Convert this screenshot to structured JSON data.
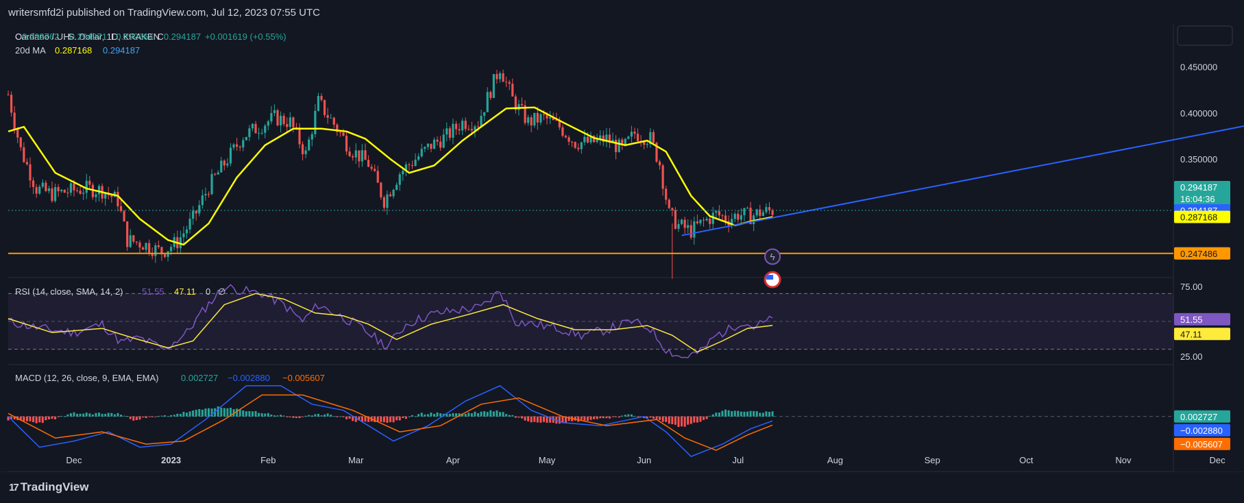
{
  "header": {
    "publish_text": "writersmfd2i published on TradingView.com, Jul 12, 2023 07:55 UTC"
  },
  "footer": {
    "brand": "TradingView",
    "logo_glyph": "17"
  },
  "colors": {
    "background": "#131722",
    "up": "#26a69a",
    "down": "#ef5350",
    "ma": "#ffff00",
    "trendline": "#2962ff",
    "support": "#ff9800",
    "rsi": "#7e57c2",
    "rsi_ma": "#ffeb3b",
    "macd": "#2962ff",
    "signal": "#ff6d00",
    "hist_up": "#26a69a",
    "hist_down": "#ff5252"
  },
  "chart_data": [
    {
      "type": "candlestick",
      "legend": {
        "symbol": "Cardano / U. S. Dollar, 1D, KRAKEN",
        "o_label": "O",
        "o_val": "0.292762",
        "h_label": "H",
        "h_val": "0.294971",
        "l_label": "L",
        "l_val": "0.292664",
        "c_label": "C",
        "c_val": "0.294187",
        "change": "+0.001619 (+0.55%)",
        "ma_label": "20d MA",
        "ma_val1": "0.287168",
        "ma_val2": "0.294187"
      },
      "y_ticks": [
        "0.450000",
        "0.400000",
        "0.350000"
      ],
      "ylim": [
        0.225,
        0.49
      ],
      "x_ticks": [
        "Dec",
        "2023",
        "Feb",
        "Mar",
        "Apr",
        "May",
        "Jun",
        "Jul",
        "Aug",
        "Sep",
        "Oct",
        "Nov",
        "Dec"
      ],
      "close_path_anchors": [
        [
          "2022-11-10",
          0.42
        ],
        [
          "2022-11-14",
          0.36
        ],
        [
          "2022-11-19",
          0.318
        ],
        [
          "2022-11-24",
          0.312
        ],
        [
          "2022-11-29",
          0.315
        ],
        [
          "2022-12-05",
          0.318
        ],
        [
          "2022-12-10",
          0.316
        ],
        [
          "2022-12-15",
          0.305
        ],
        [
          "2022-12-18",
          0.262
        ],
        [
          "2022-12-23",
          0.258
        ],
        [
          "2022-12-29",
          0.249
        ],
        [
          "2023-01-03",
          0.26
        ],
        [
          "2023-01-08",
          0.285
        ],
        [
          "2023-01-13",
          0.32
        ],
        [
          "2023-01-18",
          0.345
        ],
        [
          "2023-01-24",
          0.375
        ],
        [
          "2023-01-29",
          0.385
        ],
        [
          "2023-02-03",
          0.395
        ],
        [
          "2023-02-08",
          0.39
        ],
        [
          "2023-02-13",
          0.355
        ],
        [
          "2023-02-17",
          0.412
        ],
        [
          "2023-02-22",
          0.388
        ],
        [
          "2023-02-27",
          0.362
        ],
        [
          "2023-03-05",
          0.345
        ],
        [
          "2023-03-10",
          0.305
        ],
        [
          "2023-03-15",
          0.335
        ],
        [
          "2023-03-20",
          0.35
        ],
        [
          "2023-03-25",
          0.365
        ],
        [
          "2023-03-30",
          0.375
        ],
        [
          "2023-04-04",
          0.39
        ],
        [
          "2023-04-09",
          0.39
        ],
        [
          "2023-04-13",
          0.425
        ],
        [
          "2023-04-16",
          0.45
        ],
        [
          "2023-04-20",
          0.415
        ],
        [
          "2023-04-25",
          0.39
        ],
        [
          "2023-04-30",
          0.395
        ],
        [
          "2023-05-05",
          0.385
        ],
        [
          "2023-05-10",
          0.368
        ],
        [
          "2023-05-15",
          0.368
        ],
        [
          "2023-05-20",
          0.372
        ],
        [
          "2023-05-25",
          0.36
        ],
        [
          "2023-05-29",
          0.378
        ],
        [
          "2023-06-03",
          0.372
        ],
        [
          "2023-06-06",
          0.345
        ],
        [
          "2023-06-09",
          0.29
        ],
        [
          "2023-06-12",
          0.278
        ],
        [
          "2023-06-16",
          0.272
        ],
        [
          "2023-06-20",
          0.282
        ],
        [
          "2023-06-24",
          0.29
        ],
        [
          "2023-06-28",
          0.285
        ],
        [
          "2023-07-01",
          0.29
        ],
        [
          "2023-07-05",
          0.288
        ],
        [
          "2023-07-08",
          0.292
        ],
        [
          "2023-07-12",
          0.294
        ]
      ],
      "ma_path_anchors": [
        [
          "2022-11-10",
          0.38
        ],
        [
          "2022-11-15",
          0.385
        ],
        [
          "2022-11-25",
          0.335
        ],
        [
          "2022-12-05",
          0.318
        ],
        [
          "2022-12-15",
          0.31
        ],
        [
          "2022-12-22",
          0.285
        ],
        [
          "2022-12-31",
          0.262
        ],
        [
          "2023-01-05",
          0.257
        ],
        [
          "2023-01-13",
          0.28
        ],
        [
          "2023-01-22",
          0.33
        ],
        [
          "2023-01-31",
          0.365
        ],
        [
          "2023-02-09",
          0.383
        ],
        [
          "2023-02-18",
          0.383
        ],
        [
          "2023-02-26",
          0.38
        ],
        [
          "2023-03-04",
          0.372
        ],
        [
          "2023-03-12",
          0.35
        ],
        [
          "2023-03-18",
          0.335
        ],
        [
          "2023-03-26",
          0.343
        ],
        [
          "2023-04-04",
          0.37
        ],
        [
          "2023-04-12",
          0.39
        ],
        [
          "2023-04-18",
          0.405
        ],
        [
          "2023-04-27",
          0.406
        ],
        [
          "2023-05-06",
          0.39
        ],
        [
          "2023-05-16",
          0.373
        ],
        [
          "2023-05-26",
          0.365
        ],
        [
          "2023-06-02",
          0.37
        ],
        [
          "2023-06-08",
          0.358
        ],
        [
          "2023-06-16",
          0.31
        ],
        [
          "2023-06-22",
          0.288
        ],
        [
          "2023-06-30",
          0.278
        ],
        [
          "2023-07-06",
          0.283
        ],
        [
          "2023-07-12",
          0.287
        ]
      ],
      "trendline": {
        "x1": "2023-06-13",
        "y1": 0.267,
        "x2": "2023-12-31",
        "y2": 0.4
      },
      "support": {
        "value": 0.247486
      },
      "markers": [
        "flash-icon",
        "us-flag-icon"
      ],
      "price_labels": [
        {
          "text": "0.294187",
          "sub": "16:04:36",
          "bg": "#26a69a"
        },
        {
          "text": "0.294187",
          "bg": "#2962ff"
        },
        {
          "text": "0.287168",
          "bg": "#ffff00"
        },
        {
          "text": "0.247486",
          "bg": "#ff9800"
        }
      ]
    },
    {
      "type": "line",
      "name": "RSI (14, close, SMA, 14, 2)",
      "legend_values": [
        "51.55",
        "47.11",
        "0",
        "∅"
      ],
      "y_ticks": [
        "75.00",
        "25.00"
      ],
      "ylim": [
        20,
        80
      ],
      "band": [
        30,
        70
      ],
      "rsi_anchors": [
        [
          "2022-11-10",
          50
        ],
        [
          "2022-11-20",
          45
        ],
        [
          "2022-12-01",
          42
        ],
        [
          "2022-12-10",
          48
        ],
        [
          "2022-12-16",
          35
        ],
        [
          "2022-12-22",
          38
        ],
        [
          "2022-12-30",
          30
        ],
        [
          "2023-01-06",
          42
        ],
        [
          "2023-01-12",
          60
        ],
        [
          "2023-01-18",
          75
        ],
        [
          "2023-01-24",
          72
        ],
        [
          "2023-01-30",
          70
        ],
        [
          "2023-02-06",
          62
        ],
        [
          "2023-02-12",
          50
        ],
        [
          "2023-02-17",
          62
        ],
        [
          "2023-02-23",
          55
        ],
        [
          "2023-03-01",
          48
        ],
        [
          "2023-03-06",
          40
        ],
        [
          "2023-03-11",
          32
        ],
        [
          "2023-03-17",
          48
        ],
        [
          "2023-03-25",
          55
        ],
        [
          "2023-04-02",
          58
        ],
        [
          "2023-04-10",
          60
        ],
        [
          "2023-04-16",
          72
        ],
        [
          "2023-04-21",
          50
        ],
        [
          "2023-04-27",
          48
        ],
        [
          "2023-05-05",
          45
        ],
        [
          "2023-05-12",
          40
        ],
        [
          "2023-05-20",
          44
        ],
        [
          "2023-05-28",
          50
        ],
        [
          "2023-06-03",
          45
        ],
        [
          "2023-06-08",
          30
        ],
        [
          "2023-06-13",
          24
        ],
        [
          "2023-06-19",
          28
        ],
        [
          "2023-06-24",
          40
        ],
        [
          "2023-06-28",
          44
        ],
        [
          "2023-07-02",
          50
        ],
        [
          "2023-07-06",
          46
        ],
        [
          "2023-07-12",
          51.55
        ]
      ],
      "rsi_ma_anchors": [
        [
          "2022-11-10",
          52
        ],
        [
          "2022-11-24",
          42
        ],
        [
          "2022-12-10",
          45
        ],
        [
          "2022-12-20",
          38
        ],
        [
          "2022-12-31",
          31
        ],
        [
          "2023-01-08",
          36
        ],
        [
          "2023-01-18",
          62
        ],
        [
          "2023-01-28",
          70
        ],
        [
          "2023-02-06",
          66
        ],
        [
          "2023-02-16",
          56
        ],
        [
          "2023-02-25",
          54
        ],
        [
          "2023-03-05",
          48
        ],
        [
          "2023-03-14",
          37
        ],
        [
          "2023-03-25",
          48
        ],
        [
          "2023-04-06",
          55
        ],
        [
          "2023-04-17",
          62
        ],
        [
          "2023-04-28",
          52
        ],
        [
          "2023-05-10",
          44
        ],
        [
          "2023-05-22",
          44
        ],
        [
          "2023-06-02",
          47
        ],
        [
          "2023-06-10",
          40
        ],
        [
          "2023-06-18",
          28
        ],
        [
          "2023-06-26",
          36
        ],
        [
          "2023-07-04",
          45
        ],
        [
          "2023-07-12",
          47.11
        ]
      ]
    },
    {
      "type": "line",
      "name": "MACD (12, 26, close, 9, EMA, EMA)",
      "legend_values": [
        "0.002727",
        "−0.002880",
        "−0.005607"
      ],
      "ylim": [
        -0.034,
        0.032
      ],
      "zero_line": 0,
      "histogram_anchors": [
        [
          "2022-11-10",
          -0.002
        ],
        [
          "2022-11-20",
          -0.004
        ],
        [
          "2022-12-01",
          0.002
        ],
        [
          "2022-12-15",
          0.002
        ],
        [
          "2022-12-20",
          -0.002
        ],
        [
          "2023-01-01",
          0.001
        ],
        [
          "2023-01-15",
          0.006
        ],
        [
          "2023-01-25",
          0.004
        ],
        [
          "2023-02-10",
          -0.001
        ],
        [
          "2023-02-20",
          0.002
        ],
        [
          "2023-03-01",
          -0.003
        ],
        [
          "2023-03-12",
          -0.004
        ],
        [
          "2023-03-22",
          0.002
        ],
        [
          "2023-04-05",
          0.002
        ],
        [
          "2023-04-15",
          0.004
        ],
        [
          "2023-04-25",
          -0.003
        ],
        [
          "2023-05-05",
          -0.004
        ],
        [
          "2023-05-15",
          -0.002
        ],
        [
          "2023-05-28",
          0.001
        ],
        [
          "2023-06-05",
          -0.002
        ],
        [
          "2023-06-13",
          -0.007
        ],
        [
          "2023-06-20",
          -0.002
        ],
        [
          "2023-06-26",
          0.004
        ],
        [
          "2023-07-04",
          0.003
        ],
        [
          "2023-07-12",
          0.002727
        ]
      ],
      "macd_anchors": [
        [
          "2022-11-10",
          0.0
        ],
        [
          "2022-11-20",
          -0.02
        ],
        [
          "2022-12-01",
          -0.016
        ],
        [
          "2022-12-12",
          -0.01
        ],
        [
          "2022-12-22",
          -0.02
        ],
        [
          "2023-01-01",
          -0.018
        ],
        [
          "2023-01-12",
          -0.002
        ],
        [
          "2023-01-25",
          0.02
        ],
        [
          "2023-02-05",
          0.02
        ],
        [
          "2023-02-15",
          0.008
        ],
        [
          "2023-02-25",
          0.004
        ],
        [
          "2023-03-05",
          -0.006
        ],
        [
          "2023-03-13",
          -0.016
        ],
        [
          "2023-03-24",
          -0.006
        ],
        [
          "2023-04-05",
          0.01
        ],
        [
          "2023-04-16",
          0.02
        ],
        [
          "2023-04-26",
          0.004
        ],
        [
          "2023-05-06",
          -0.004
        ],
        [
          "2023-05-18",
          -0.006
        ],
        [
          "2023-06-01",
          0.0
        ],
        [
          "2023-06-08",
          -0.01
        ],
        [
          "2023-06-16",
          -0.026
        ],
        [
          "2023-06-26",
          -0.018
        ],
        [
          "2023-07-05",
          -0.008
        ],
        [
          "2023-07-12",
          -0.00288
        ]
      ],
      "signal_anchors": [
        [
          "2022-11-10",
          0.002
        ],
        [
          "2022-11-25",
          -0.014
        ],
        [
          "2022-12-10",
          -0.01
        ],
        [
          "2022-12-24",
          -0.018
        ],
        [
          "2023-01-05",
          -0.016
        ],
        [
          "2023-01-18",
          -0.002
        ],
        [
          "2023-01-30",
          0.014
        ],
        [
          "2023-02-12",
          0.014
        ],
        [
          "2023-02-28",
          0.004
        ],
        [
          "2023-03-15",
          -0.01
        ],
        [
          "2023-03-28",
          -0.006
        ],
        [
          "2023-04-10",
          0.008
        ],
        [
          "2023-04-22",
          0.012
        ],
        [
          "2023-05-06",
          0.0
        ],
        [
          "2023-05-20",
          -0.006
        ],
        [
          "2023-06-05",
          -0.002
        ],
        [
          "2023-06-14",
          -0.014
        ],
        [
          "2023-06-24",
          -0.022
        ],
        [
          "2023-07-04",
          -0.012
        ],
        [
          "2023-07-12",
          -0.005607
        ]
      ],
      "value_labels": [
        {
          "text": "0.002727",
          "bg": "#26a69a"
        },
        {
          "text": "−0.002880",
          "bg": "#2962ff"
        },
        {
          "text": "−0.005607",
          "bg": "#ff6d00"
        }
      ]
    }
  ]
}
